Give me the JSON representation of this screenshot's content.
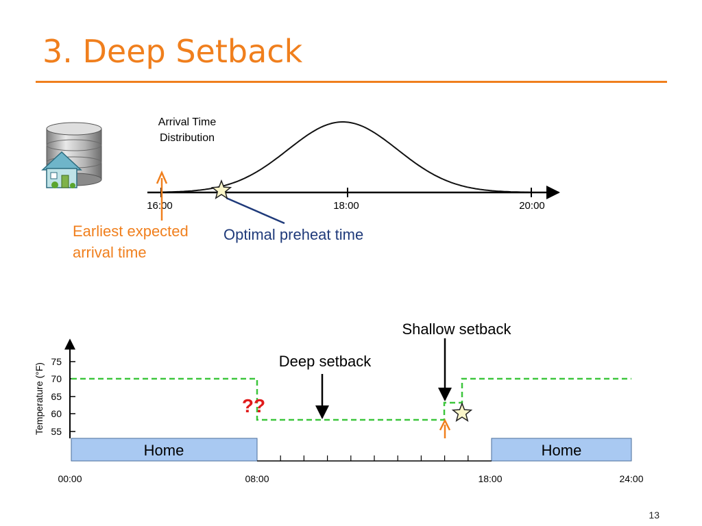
{
  "slide": {
    "title": "3. Deep Setback",
    "page_number": "13"
  },
  "colors": {
    "accent": "#f07f1d",
    "navy": "#1f3a7a",
    "setpoint_line": "#3cc63c",
    "home_fill": "#a9c9f2",
    "home_stroke": "#4a6d9a",
    "question": "#e01b1b",
    "star_fill": "#fbf6c9"
  },
  "icons": {
    "database": "database-icon",
    "house": "house-icon",
    "star": "star-icon"
  },
  "distribution": {
    "label_line1": "Arrival Time",
    "label_line2": "Distribution",
    "ticks": [
      "16:00",
      "18:00",
      "20:00"
    ]
  },
  "annotations": {
    "earliest_line1": "Earliest expected",
    "earliest_line2": "arrival time",
    "optimal": "Optimal preheat time",
    "shallow": "Shallow setback",
    "deep": "Deep setback",
    "question": "??"
  },
  "schedule": {
    "y_axis_label": "Temperature (°F)",
    "y_ticks": [
      "75",
      "70",
      "65",
      "60",
      "55"
    ],
    "x_labels": [
      "00:00",
      "08:00",
      "18:00",
      "24:00"
    ],
    "home_label": "Home"
  }
}
